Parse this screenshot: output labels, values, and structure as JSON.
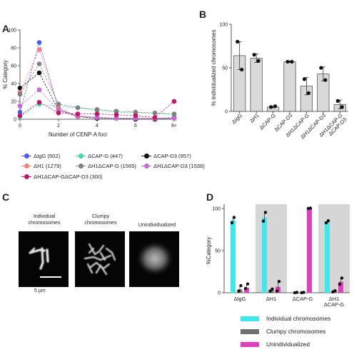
{
  "panels": {
    "a": {
      "letter": "A"
    },
    "b": {
      "letter": "B"
    },
    "c": {
      "letter": "C"
    },
    "d": {
      "letter": "D"
    }
  },
  "panel_c": {
    "titles": [
      "Individual\nchromosomes",
      "Clumpy\nchromosomes",
      "Unindividualized"
    ],
    "scale_label": "5 µm"
  },
  "chart_data": [
    {
      "panel": "A",
      "type": "line",
      "ylabel": "% Category",
      "xlabel": "Number of CENP-A foci",
      "x": [
        0,
        1,
        2,
        3,
        4,
        5,
        6,
        7,
        8
      ],
      "x_tick_labels": [
        "0",
        "2",
        "4",
        "6",
        "8+"
      ],
      "x_tick_values": [
        0,
        2,
        4,
        6,
        8
      ],
      "ylim": [
        0,
        100
      ],
      "y_ticks": [
        0,
        20,
        40,
        60,
        80,
        100
      ],
      "series": [
        {
          "name": "ΔIgG (502)",
          "color": "#4a5fe0",
          "values": [
            8,
            86,
            12,
            3,
            2,
            1,
            1,
            1,
            2
          ]
        },
        {
          "name": "ΔCAP-G (447)",
          "color": "#3fd8a0",
          "values": [
            3,
            17,
            14,
            13,
            10,
            8,
            7,
            7,
            5
          ]
        },
        {
          "name": "ΔCAP-D3 (957)",
          "color": "#111111",
          "values": [
            35,
            52,
            10,
            3,
            1,
            1,
            0,
            0,
            1
          ]
        },
        {
          "name": "ΔH1 (1279)",
          "color": "#f08080",
          "values": [
            30,
            78,
            13,
            3,
            2,
            1,
            1,
            1,
            1
          ]
        },
        {
          "name": "ΔH1ΔCAP-G (1565)",
          "color": "#808080",
          "values": [
            28,
            62,
            17,
            13,
            11,
            9,
            8,
            7,
            6
          ]
        },
        {
          "name": "ΔH1ΔCAP-D3 (1536)",
          "color": "#c868d8",
          "values": [
            15,
            33,
            10,
            4,
            2,
            1,
            1,
            1,
            1
          ]
        },
        {
          "name": "ΔH1ΔCAP-GΔCAP-D3 (300)",
          "color": "#c0166a",
          "values": [
            4,
            19,
            7,
            6,
            6,
            5,
            4,
            2,
            20
          ]
        }
      ]
    },
    {
      "panel": "B",
      "type": "bar",
      "ylabel": "% individualized chromosomes",
      "categories": [
        "ΔIgG",
        "ΔH1",
        "ΔCAP-G",
        "ΔCAP-D3",
        "ΔH1ΔCAP-G",
        "ΔH1ΔCAP-D3",
        "ΔH1ΔCAP-G\nΔCAP-D3"
      ],
      "values": [
        64,
        61,
        5,
        57,
        29,
        43,
        8
      ],
      "errors": [
        16,
        5,
        1,
        1,
        10,
        8,
        5
      ],
      "points": [
        [
          80,
          48
        ],
        [
          65,
          58
        ],
        [
          5,
          6
        ],
        [
          57,
          57
        ],
        [
          37,
          21
        ],
        [
          50,
          36
        ],
        [
          12,
          5
        ]
      ],
      "ylim": [
        0,
        100
      ],
      "y_ticks": [
        0,
        50,
        100
      ],
      "bar_color": "#d9d9d9"
    },
    {
      "panel": "D",
      "type": "bar",
      "ylabel": "%Category",
      "categories": [
        "ΔIgG",
        "ΔH1",
        "ΔCAP-G",
        "ΔH1\nΔCAP-G"
      ],
      "ylim": [
        0,
        100
      ],
      "y_ticks": [
        0,
        50,
        100
      ],
      "series": [
        {
          "name": "Individual chromosomes",
          "color": "#40e8ee",
          "values": [
            86,
            89,
            0,
            84
          ]
        },
        {
          "name": "Clumpy chromosomes",
          "color": "#707070",
          "values": [
            4,
            3,
            0,
            2
          ]
        },
        {
          "name": "Unindividualized",
          "color": "#e040c0",
          "values": [
            6,
            7,
            100,
            13
          ]
        }
      ],
      "points": [
        [
          [
            83,
            89
          ],
          [
            2,
            8
          ],
          [
            5,
            10
          ]
        ],
        [
          [
            85,
            95
          ],
          [
            2,
            4
          ],
          [
            2,
            13
          ]
        ],
        [
          [
            0,
            0
          ],
          [
            0,
            0
          ],
          [
            100,
            100
          ]
        ],
        [
          [
            83,
            85
          ],
          [
            1,
            2
          ],
          [
            10,
            17
          ]
        ]
      ]
    }
  ]
}
